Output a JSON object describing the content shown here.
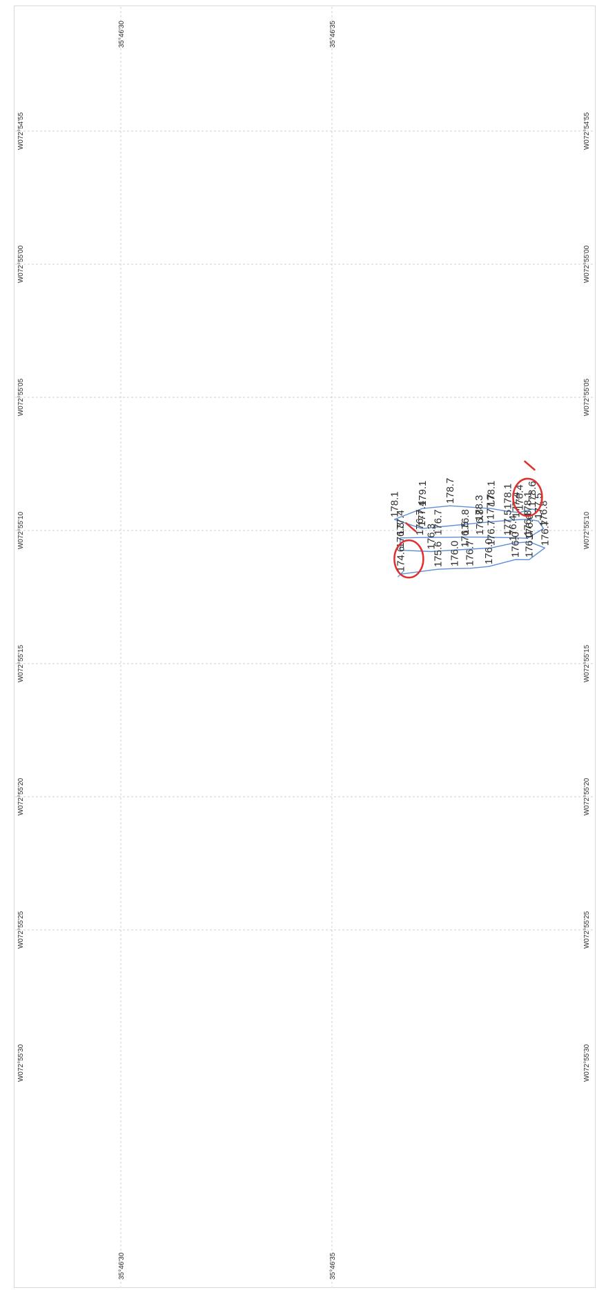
{
  "map": {
    "latitude_labels": [
      "35°46'30",
      "35°46'35"
    ],
    "longitude_labels": [
      "W072°54'55",
      "W072°55'00",
      "W072°55'05",
      "W072°55'10",
      "W072°55'15",
      "W072°55'20",
      "W072°55'25",
      "W072°55'30"
    ],
    "track_color": "#5b8fd6",
    "annotation_color": "#e03030",
    "points": [
      {
        "label": "178.6",
        "lat": 35.777705,
        "lon": -72.9192
      },
      {
        "label": "178.4",
        "lat": 35.777621,
        "lon": -72.919236
      },
      {
        "label": "178.1",
        "lat": 35.777544,
        "lon": -72.919225
      },
      {
        "label": "178.1",
        "lat": 35.777435,
        "lon": -72.919195
      },
      {
        "label": "178.7",
        "lat": 35.777165,
        "lon": -72.919167
      },
      {
        "label": "179.1",
        "lat": 35.776983,
        "lon": -72.919195
      },
      {
        "label": "178.1",
        "lat": 35.7768,
        "lon": -72.919308
      },
      {
        "label": "177.4",
        "lat": 35.776979,
        "lon": -72.919403
      },
      {
        "label": "178.3",
        "lat": 35.777356,
        "lon": -72.919345
      },
      {
        "label": "177.7",
        "lat": 35.77743,
        "lon": -72.919333
      },
      {
        "label": "177.4",
        "lat": 35.777598,
        "lon": -72.919312
      },
      {
        "label": "178.1",
        "lat": 35.777675,
        "lon": -72.919307
      },
      {
        "label": "177.5",
        "lat": 35.777745,
        "lon": -72.919324
      },
      {
        "label": "176.8",
        "lat": 35.77778,
        "lon": -72.919402
      },
      {
        "label": "176.8",
        "lat": 35.777675,
        "lon": -72.919503
      },
      {
        "label": "177.5",
        "lat": 35.777545,
        "lon": -72.919497
      },
      {
        "label": "176.8",
        "lat": 35.77736,
        "lon": -72.919492
      },
      {
        "label": "176.8",
        "lat": 35.777265,
        "lon": -72.919492
      },
      {
        "label": "176.7",
        "lat": 35.777085,
        "lon": -72.919494
      },
      {
        "label": "176.7",
        "lat": 35.776965,
        "lon": -72.919496
      },
      {
        "label": "177.4",
        "lat": 35.776838,
        "lon": -72.9195
      },
      {
        "label": "176.3",
        "lat": 35.776838,
        "lon": -72.919628
      },
      {
        "label": "176.3",
        "lat": 35.77704,
        "lon": -72.919641
      },
      {
        "label": "176.5",
        "lat": 35.777262,
        "lon": -72.91962
      },
      {
        "label": "176.7",
        "lat": 35.777435,
        "lon": -72.919604
      },
      {
        "label": "176.4",
        "lat": 35.777578,
        "lon": -72.919555
      },
      {
        "label": "176.6",
        "lat": 35.777688,
        "lon": -72.919541
      },
      {
        "label": "176.7",
        "lat": 35.777788,
        "lon": -72.919604
      },
      {
        "label": "176.0",
        "lat": 35.777685,
        "lon": -72.919726
      },
      {
        "label": "176.0",
        "lat": 35.777595,
        "lon": -72.919725
      },
      {
        "label": "176.0",
        "lat": 35.77742,
        "lon": -72.919797
      },
      {
        "label": "176.7",
        "lat": 35.777295,
        "lon": -72.919815
      },
      {
        "label": "176.0",
        "lat": 35.777195,
        "lon": -72.919818
      },
      {
        "label": "175.6",
        "lat": 35.777085,
        "lon": -72.919825
      },
      {
        "label": "174.6",
        "lat": 35.77684,
        "lon": -72.919876
      }
    ],
    "highlighted": [
      "174.6",
      "178.4"
    ]
  }
}
